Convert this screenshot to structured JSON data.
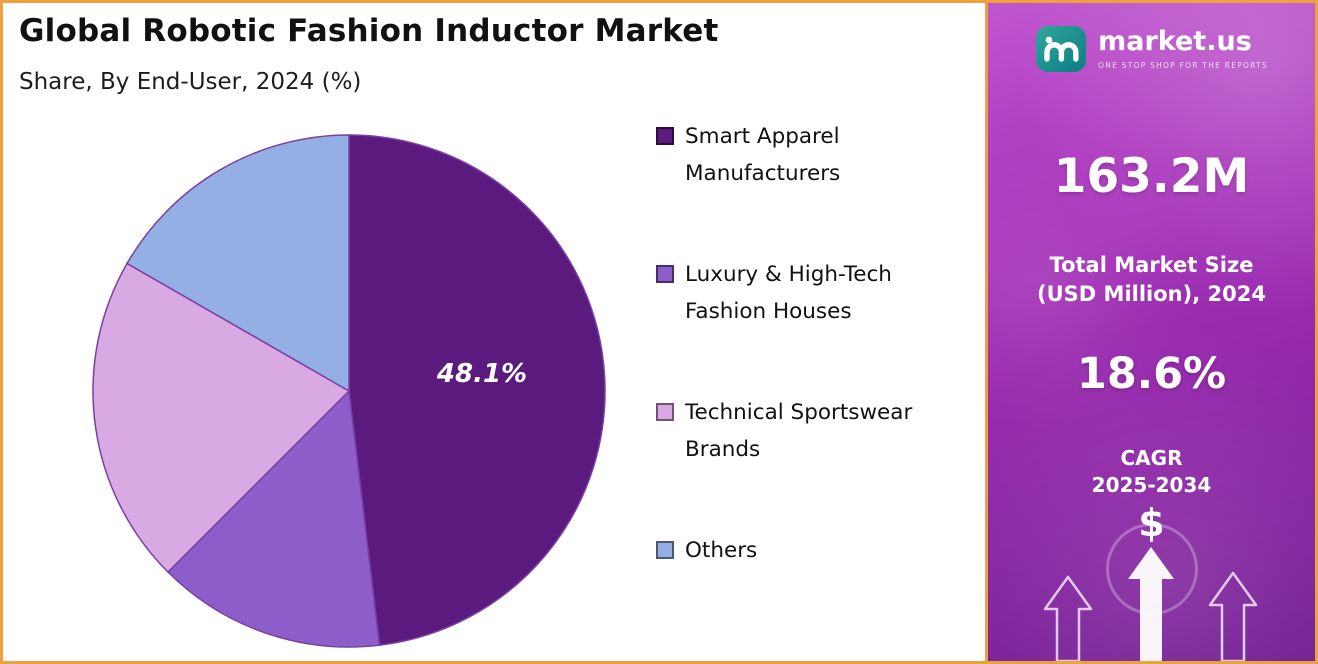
{
  "header": {
    "title": "Global Robotic Fashion Inductor Market",
    "subtitle": "Share, By End-User, 2024 (%)"
  },
  "chart_data": {
    "type": "pie",
    "title": "Global Robotic Fashion Inductor Market",
    "subtitle": "Share, By End-User, 2024 (%)",
    "labels": [
      "Smart Apparel Manufacturers",
      "Luxury & High-Tech Fashion Houses",
      "Technical Sportswear Brands",
      "Others"
    ],
    "values": [
      48.1,
      14.4,
      20.8,
      16.7
    ],
    "colors": [
      "#5a1a7e",
      "#8d5ec9",
      "#d9a9e3",
      "#93afe3"
    ],
    "slice_stroke_color": "#7b3fa3",
    "value_label": "48.1%",
    "value_label_slice": "Smart Apparel Manufacturers",
    "start_angle_deg": 0,
    "direction": "clockwise",
    "legend_position": "right"
  },
  "sidebar": {
    "brand": {
      "name": "market.us",
      "tagline": "ONE STOP SHOP FOR THE REPORTS"
    },
    "market_size": {
      "value": "163.2M",
      "label_line1": "Total Market Size",
      "label_line2": "(USD Million), 2024"
    },
    "cagr": {
      "value": "18.6%",
      "label": "CAGR",
      "period": "2025-2034"
    },
    "dollar_symbol": "$",
    "accent_border_color": "#eda23f",
    "icons": [
      "dollar-icon",
      "growth-arrows-icon",
      "marketus-logo-icon"
    ]
  }
}
